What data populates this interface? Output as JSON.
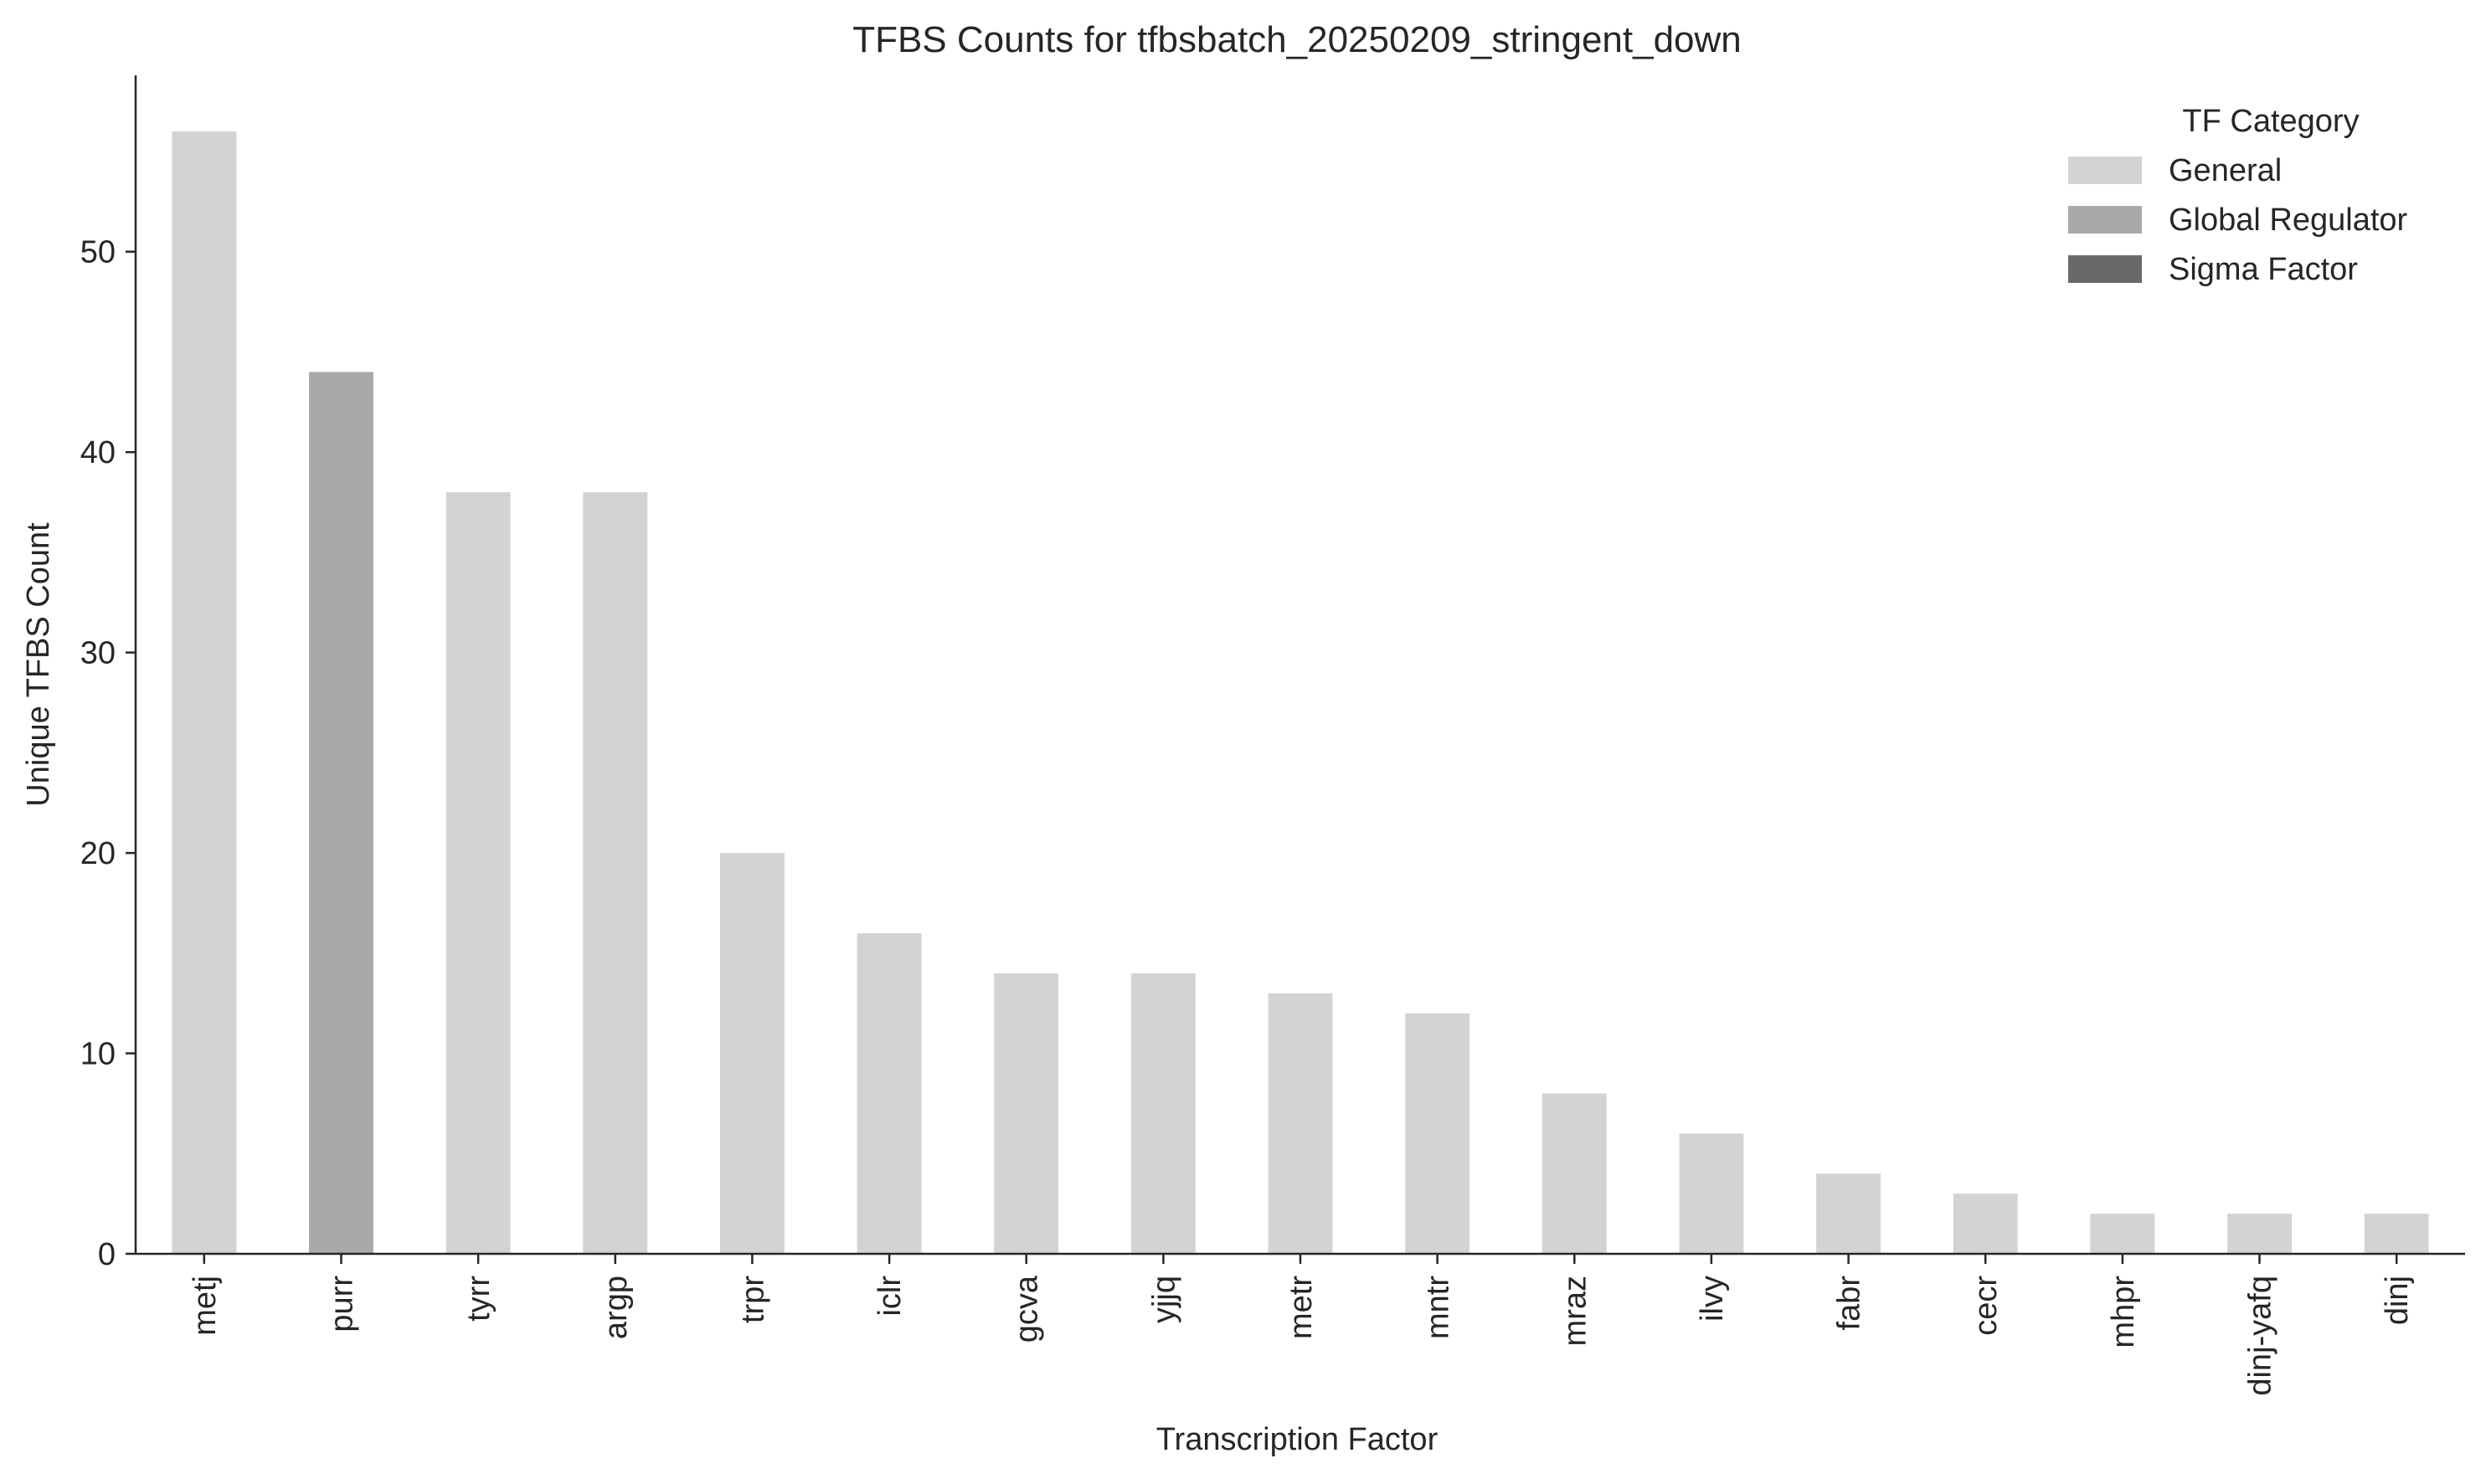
{
  "chart_data": {
    "type": "bar",
    "title": "TFBS Counts for tfbsbatch_20250209_stringent_down",
    "xlabel": "Transcription Factor",
    "ylabel": "Unique TFBS Count",
    "ylim": [
      0,
      58.8
    ],
    "yticks": [
      0,
      10,
      20,
      30,
      40,
      50
    ],
    "grid": false,
    "legend": {
      "title": "TF Category",
      "placement": "top-right",
      "entries": [
        {
          "label": "General",
          "color": "#d3d3d3"
        },
        {
          "label": "Global Regulator",
          "color": "#a9a9a9"
        },
        {
          "label": "Sigma Factor",
          "color": "#696969"
        }
      ]
    },
    "categories": [
      "metj",
      "purr",
      "tyrr",
      "argp",
      "trpr",
      "iclr",
      "gcva",
      "yjjq",
      "metr",
      "mntr",
      "mraz",
      "ilvy",
      "fabr",
      "cecr",
      "mhpr",
      "dinj-yafq",
      "dinj"
    ],
    "values": [
      56,
      44,
      38,
      38,
      20,
      16,
      14,
      14,
      13,
      12,
      8,
      6,
      4,
      3,
      2,
      2,
      2
    ],
    "bar_category": [
      "General",
      "Global Regulator",
      "General",
      "General",
      "General",
      "General",
      "General",
      "General",
      "General",
      "General",
      "General",
      "General",
      "General",
      "General",
      "General",
      "General",
      "General"
    ]
  }
}
